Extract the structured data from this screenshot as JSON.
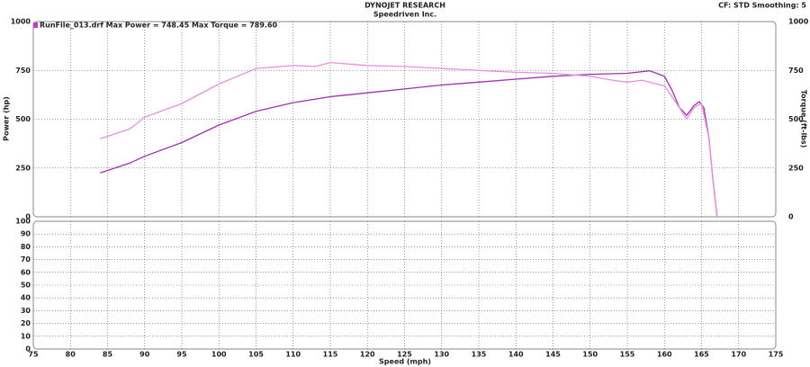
{
  "header": {
    "title": "DYNOJET RESEARCH",
    "subtitle": "Speedriven Inc.",
    "settings": "CF: STD  Smoothing: 5"
  },
  "chart_data": [
    {
      "type": "line",
      "legend_text": "RunFile_013.drf Max Power = 748.45     Max Torque = 789.60",
      "ylabel": "Power (hp)",
      "y2label": "Torque (ft-lbs)",
      "xlim": [
        75,
        175
      ],
      "xticks": [
        75,
        80,
        85,
        90,
        95,
        100,
        105,
        110,
        115,
        120,
        125,
        130,
        135,
        140,
        145,
        150,
        155,
        160,
        165,
        170,
        175
      ],
      "ylim": [
        0,
        1000
      ],
      "yticks": [
        0,
        250,
        500,
        750,
        1000
      ],
      "y2lim": [
        0,
        1000
      ],
      "y2ticks": [
        0,
        250,
        500,
        750,
        1000
      ],
      "grid": true,
      "series": [
        {
          "color": "#a030b0",
          "x": [
            84,
            86,
            88,
            90,
            95,
            100,
            105,
            110,
            115,
            120,
            125,
            130,
            135,
            140,
            145,
            150,
            155,
            158,
            160,
            161,
            162,
            163,
            164,
            164.7,
            165.3,
            166,
            166.5,
            167.1
          ],
          "values": [
            225,
            250,
            275,
            310,
            380,
            470,
            540,
            585,
            615,
            635,
            655,
            675,
            690,
            705,
            720,
            730,
            735,
            748,
            720,
            650,
            560,
            520,
            570,
            590,
            560,
            400,
            200,
            0
          ]
        },
        {
          "color": "#e890e8",
          "axis": "y2",
          "x": [
            84,
            88,
            90,
            95,
            100,
            105,
            110,
            113,
            115,
            120,
            125,
            130,
            135,
            140,
            145,
            150,
            153,
            155,
            157,
            160,
            162,
            163,
            164,
            165,
            166,
            166.5,
            167.1
          ],
          "values": [
            400,
            450,
            510,
            580,
            680,
            760,
            775,
            770,
            790,
            775,
            770,
            760,
            750,
            740,
            735,
            720,
            700,
            690,
            700,
            670,
            560,
            500,
            560,
            580,
            400,
            200,
            0
          ]
        }
      ]
    },
    {
      "type": "line",
      "xlabel": "Speed (mph)",
      "xlim": [
        75,
        175
      ],
      "xticks": [
        75,
        80,
        85,
        90,
        95,
        100,
        105,
        110,
        115,
        120,
        125,
        130,
        135,
        140,
        145,
        150,
        155,
        160,
        165,
        170,
        175
      ],
      "ylim": [
        0,
        100
      ],
      "yticks": [
        0,
        10,
        20,
        30,
        40,
        50,
        60,
        70,
        80,
        90,
        100
      ],
      "grid": true
    }
  ]
}
